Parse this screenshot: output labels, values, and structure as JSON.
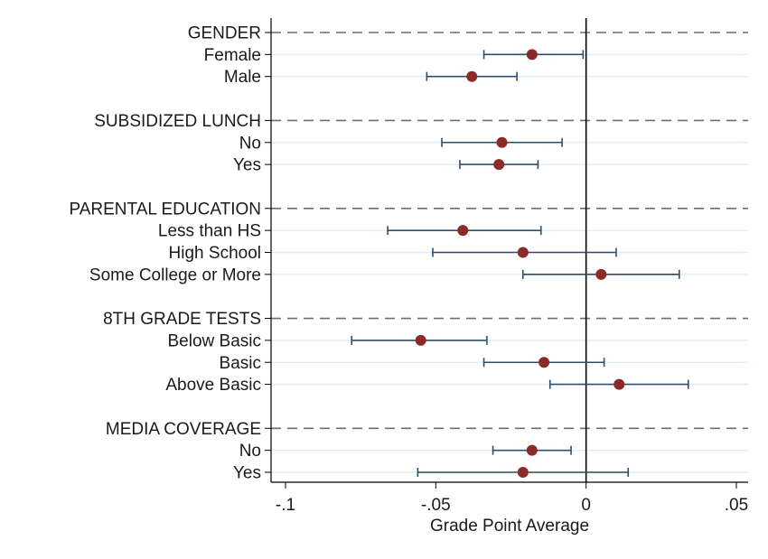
{
  "chart_data": {
    "type": "scatter",
    "subtype": "coefficient-plot",
    "title": "",
    "xlabel": "Grade Point Average",
    "ylabel": "",
    "xlim": [
      -0.105,
      0.055
    ],
    "x_ticks": [
      -0.1,
      -0.05,
      0,
      0.05
    ],
    "x_tick_labels": [
      "-.1",
      "-.05",
      "0",
      ".05"
    ],
    "reference_line_x": 0,
    "grid": "horizontal",
    "legend": "none",
    "colors": {
      "point": "#8c2a2a",
      "errorbar": "#2f4e6e",
      "group_line": "#6e6e6e",
      "gridline": "#e3ecee",
      "axis": "#000000"
    },
    "groups": [
      {
        "header": "GENDER",
        "items": [
          {
            "label": "Female",
            "estimate": -0.018,
            "ci_low": -0.034,
            "ci_high": -0.001
          },
          {
            "label": "Male",
            "estimate": -0.038,
            "ci_low": -0.053,
            "ci_high": -0.023
          }
        ]
      },
      {
        "header": "SUBSIDIZED LUNCH",
        "items": [
          {
            "label": "No",
            "estimate": -0.028,
            "ci_low": -0.048,
            "ci_high": -0.008
          },
          {
            "label": "Yes",
            "estimate": -0.029,
            "ci_low": -0.042,
            "ci_high": -0.016
          }
        ]
      },
      {
        "header": "PARENTAL EDUCATION",
        "items": [
          {
            "label": "Less than HS",
            "estimate": -0.041,
            "ci_low": -0.066,
            "ci_high": -0.015
          },
          {
            "label": "High School",
            "estimate": -0.021,
            "ci_low": -0.051,
            "ci_high": 0.01
          },
          {
            "label": "Some College or More",
            "estimate": 0.005,
            "ci_low": -0.021,
            "ci_high": 0.031
          }
        ]
      },
      {
        "header": "8TH GRADE TESTS",
        "items": [
          {
            "label": "Below Basic",
            "estimate": -0.055,
            "ci_low": -0.078,
            "ci_high": -0.033
          },
          {
            "label": "Basic",
            "estimate": -0.014,
            "ci_low": -0.034,
            "ci_high": 0.006
          },
          {
            "label": "Above Basic",
            "estimate": 0.011,
            "ci_low": -0.012,
            "ci_high": 0.034
          }
        ]
      },
      {
        "header": "MEDIA COVERAGE",
        "items": [
          {
            "label": "No",
            "estimate": -0.018,
            "ci_low": -0.031,
            "ci_high": -0.005
          },
          {
            "label": "Yes",
            "estimate": -0.021,
            "ci_low": -0.056,
            "ci_high": 0.014
          }
        ]
      }
    ]
  }
}
